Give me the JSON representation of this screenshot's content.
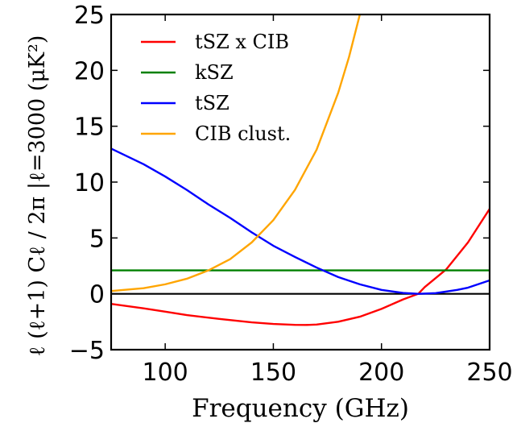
{
  "chart_data": {
    "type": "line",
    "xlabel": "Frequency (GHz)",
    "ylabel": "ℓ (ℓ+1) Cℓ / 2π |ℓ=3000 (μK²)",
    "xlim": [
      75,
      250
    ],
    "ylim": [
      -5,
      25
    ],
    "xticks": [
      "100",
      "150",
      "200",
      "250"
    ],
    "xtick_values": [
      100,
      150,
      200,
      250
    ],
    "yticks": [
      "−5",
      "0",
      "5",
      "10",
      "15",
      "20",
      "25"
    ],
    "ytick_values": [
      -5,
      0,
      5,
      10,
      15,
      20,
      25
    ],
    "legend_position": "top-left",
    "zero_line": true,
    "series": [
      {
        "name": "tSZ x CIB",
        "color": "#ff0000",
        "x": [
          75,
          90,
          100,
          110,
          125,
          140,
          150,
          160,
          165,
          170,
          180,
          190,
          200,
          210,
          217,
          220,
          230,
          240,
          250
        ],
        "y": [
          -0.9,
          -1.3,
          -1.6,
          -1.9,
          -2.25,
          -2.55,
          -2.7,
          -2.78,
          -2.79,
          -2.75,
          -2.5,
          -2.05,
          -1.35,
          -0.5,
          0,
          0.6,
          2.2,
          4.6,
          7.6
        ]
      },
      {
        "name": "kSZ",
        "color": "#008000",
        "x": [
          75,
          250
        ],
        "y": [
          2.1,
          2.1
        ]
      },
      {
        "name": "tSZ",
        "color": "#0000ff",
        "x": [
          75,
          90,
          100,
          110,
          120,
          130,
          140,
          150,
          160,
          170,
          180,
          190,
          200,
          210,
          217,
          225,
          235,
          240,
          250
        ],
        "y": [
          13.0,
          11.6,
          10.5,
          9.3,
          8.0,
          6.8,
          5.5,
          4.3,
          3.3,
          2.35,
          1.5,
          0.85,
          0.35,
          0.08,
          0,
          0.06,
          0.35,
          0.55,
          1.2
        ]
      },
      {
        "name": "CIB clust.",
        "color": "#ffa500",
        "x": [
          75,
          90,
          100,
          110,
          120,
          130,
          140,
          150,
          160,
          170,
          180,
          185,
          190
        ],
        "y": [
          0.25,
          0.5,
          0.85,
          1.35,
          2.1,
          3.1,
          4.6,
          6.6,
          9.3,
          12.9,
          18.0,
          21.2,
          25.0
        ]
      }
    ]
  }
}
